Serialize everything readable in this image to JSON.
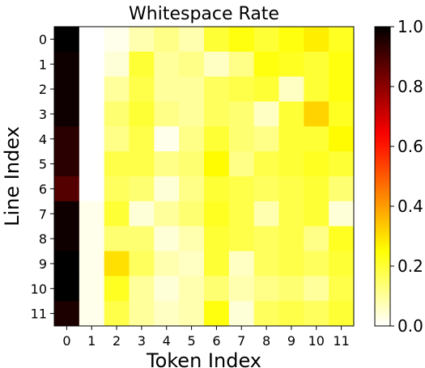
{
  "chart_data": {
    "type": "heatmap",
    "title": "Whitespace Rate",
    "xlabel": "Token Index",
    "ylabel": "Line Index",
    "x_categories": [
      "0",
      "1",
      "2",
      "3",
      "4",
      "5",
      "6",
      "7",
      "8",
      "9",
      "10",
      "11"
    ],
    "y_categories": [
      "0",
      "1",
      "2",
      "3",
      "4",
      "5",
      "6",
      "7",
      "8",
      "9",
      "10",
      "11"
    ],
    "values": [
      [
        1.0,
        0.0,
        0.02,
        0.08,
        0.12,
        0.08,
        0.2,
        0.24,
        0.2,
        0.24,
        0.28,
        0.22
      ],
      [
        0.98,
        0.0,
        0.04,
        0.2,
        0.1,
        0.12,
        0.06,
        0.12,
        0.24,
        0.22,
        0.2,
        0.24
      ],
      [
        0.98,
        0.0,
        0.1,
        0.18,
        0.1,
        0.1,
        0.16,
        0.18,
        0.2,
        0.06,
        0.2,
        0.24
      ],
      [
        0.98,
        0.0,
        0.14,
        0.2,
        0.12,
        0.1,
        0.16,
        0.14,
        0.06,
        0.2,
        0.32,
        0.22
      ],
      [
        0.94,
        0.0,
        0.12,
        0.18,
        0.02,
        0.12,
        0.2,
        0.14,
        0.12,
        0.2,
        0.2,
        0.26
      ],
      [
        0.94,
        0.0,
        0.18,
        0.18,
        0.12,
        0.14,
        0.26,
        0.12,
        0.18,
        0.2,
        0.22,
        0.2
      ],
      [
        0.88,
        0.0,
        0.16,
        0.14,
        0.04,
        0.12,
        0.2,
        0.18,
        0.16,
        0.18,
        0.2,
        0.14
      ],
      [
        0.98,
        0.02,
        0.2,
        0.04,
        0.1,
        0.14,
        0.22,
        0.18,
        0.08,
        0.18,
        0.2,
        0.04
      ],
      [
        0.98,
        0.02,
        0.14,
        0.14,
        0.04,
        0.08,
        0.2,
        0.18,
        0.16,
        0.18,
        0.12,
        0.22
      ],
      [
        1.0,
        0.02,
        0.3,
        0.16,
        0.08,
        0.06,
        0.2,
        0.06,
        0.16,
        0.18,
        0.16,
        0.2
      ],
      [
        1.0,
        0.02,
        0.22,
        0.1,
        0.04,
        0.08,
        0.14,
        0.08,
        0.12,
        0.14,
        0.1,
        0.18
      ],
      [
        0.96,
        0.02,
        0.18,
        0.1,
        0.06,
        0.08,
        0.24,
        0.04,
        0.16,
        0.18,
        0.16,
        0.2
      ]
    ],
    "colormap": "hot_r",
    "vmin": 0.0,
    "vmax": 1.0,
    "colorbar_ticks": [
      "0.0",
      "0.2",
      "0.4",
      "0.6",
      "0.8",
      "1.0"
    ],
    "grid": false
  }
}
